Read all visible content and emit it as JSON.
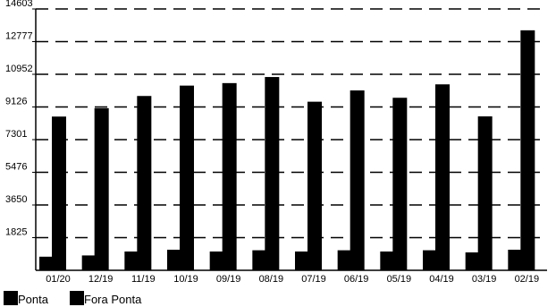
{
  "chart_data": {
    "type": "bar",
    "title": "",
    "xlabel": "",
    "ylabel": "",
    "categories": [
      "01/20",
      "12/19",
      "11/19",
      "10/19",
      "09/19",
      "08/19",
      "07/19",
      "06/19",
      "05/19",
      "04/19",
      "03/19",
      "02/19"
    ],
    "series": [
      {
        "name": "Ponta",
        "color": "#000000",
        "values": [
          760,
          830,
          1050,
          1150,
          1050,
          1120,
          1050,
          1120,
          1050,
          1120,
          1000,
          1150
        ]
      },
      {
        "name": "Fora Ponta",
        "color": "#000000",
        "values": [
          8590,
          9060,
          9740,
          10320,
          10460,
          10800,
          9420,
          10050,
          9640,
          10390,
          8600,
          13410
        ]
      }
    ],
    "yticks": [
      "1825",
      "3650",
      "5476",
      "7301",
      "9126",
      "10952",
      "12777",
      "14603"
    ],
    "ylim": [
      0,
      14603
    ],
    "grid": true,
    "legend": "bottom-left"
  }
}
